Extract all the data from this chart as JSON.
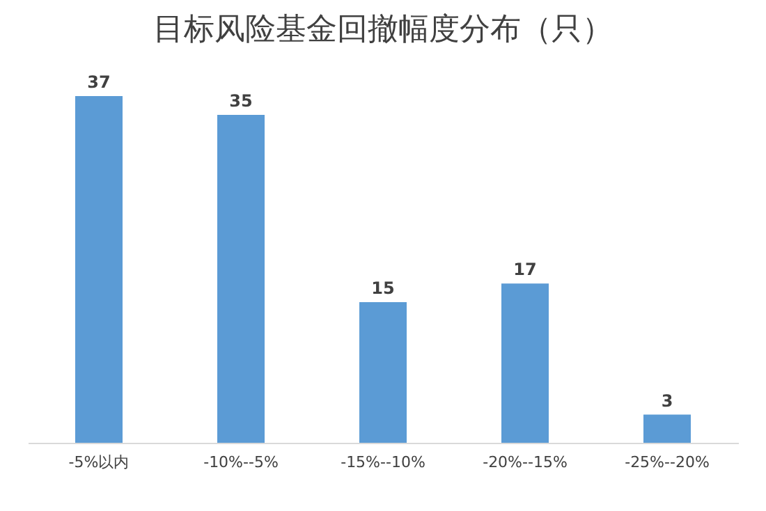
{
  "chart_data": {
    "type": "bar",
    "title": "目标风险基金回撤幅度分布（只）",
    "categories": [
      "-5%以内",
      "-10%--5%",
      "-15%--10%",
      "-20%--15%",
      "-25%--20%"
    ],
    "values": [
      37,
      35,
      15,
      17,
      3
    ],
    "color": "#5b9bd5",
    "data_labels": true,
    "grid": false
  }
}
